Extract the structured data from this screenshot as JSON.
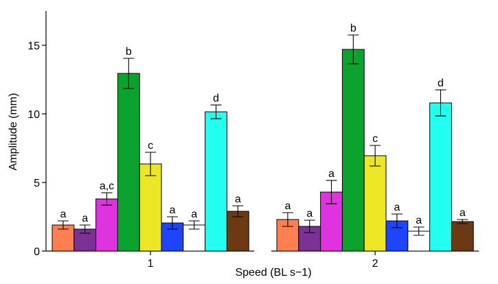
{
  "chart_data": {
    "type": "bar",
    "title": "",
    "xlabel": "Speed (BL s−1)",
    "ylabel": "Amplitude (mm)",
    "ylim": [
      0,
      17.5
    ],
    "yticks": [
      0,
      5,
      10,
      15
    ],
    "grid": false,
    "legend": "none",
    "categories": [
      "1",
      "2"
    ],
    "series": [
      {
        "color": "#FF7F50",
        "values": [
          1.9,
          2.3
        ],
        "errors": [
          0.3,
          0.5
        ],
        "labels": [
          "a",
          "a"
        ]
      },
      {
        "color": "#7B3294",
        "values": [
          1.6,
          1.8
        ],
        "errors": [
          0.3,
          0.45
        ],
        "labels": [
          "a",
          "a"
        ]
      },
      {
        "color": "#E033E0",
        "values": [
          3.8,
          4.3
        ],
        "errors": [
          0.45,
          0.85
        ],
        "labels": [
          "a,c",
          "a"
        ]
      },
      {
        "color": "#0BA32E",
        "values": [
          12.95,
          14.7
        ],
        "errors": [
          1.1,
          1.05
        ],
        "labels": [
          "b",
          "b"
        ]
      },
      {
        "color": "#EDE624",
        "values": [
          6.35,
          6.95
        ],
        "errors": [
          0.85,
          0.75
        ],
        "labels": [
          "c",
          "c"
        ]
      },
      {
        "color": "#1F44FF",
        "values": [
          2.05,
          2.2
        ],
        "errors": [
          0.45,
          0.5
        ],
        "labels": [
          "a",
          "a"
        ]
      },
      {
        "color": "#FFFFFF",
        "values": [
          1.9,
          1.45
        ],
        "errors": [
          0.3,
          0.3
        ],
        "labels": [
          "a",
          "a"
        ]
      },
      {
        "color": "#22FFF0",
        "values": [
          10.15,
          10.8
        ],
        "errors": [
          0.5,
          0.95
        ],
        "labels": [
          "d",
          "d"
        ]
      },
      {
        "color": "#6B3A12",
        "values": [
          2.9,
          2.15
        ],
        "errors": [
          0.4,
          0.15
        ],
        "labels": [
          "a",
          "a"
        ]
      }
    ]
  }
}
